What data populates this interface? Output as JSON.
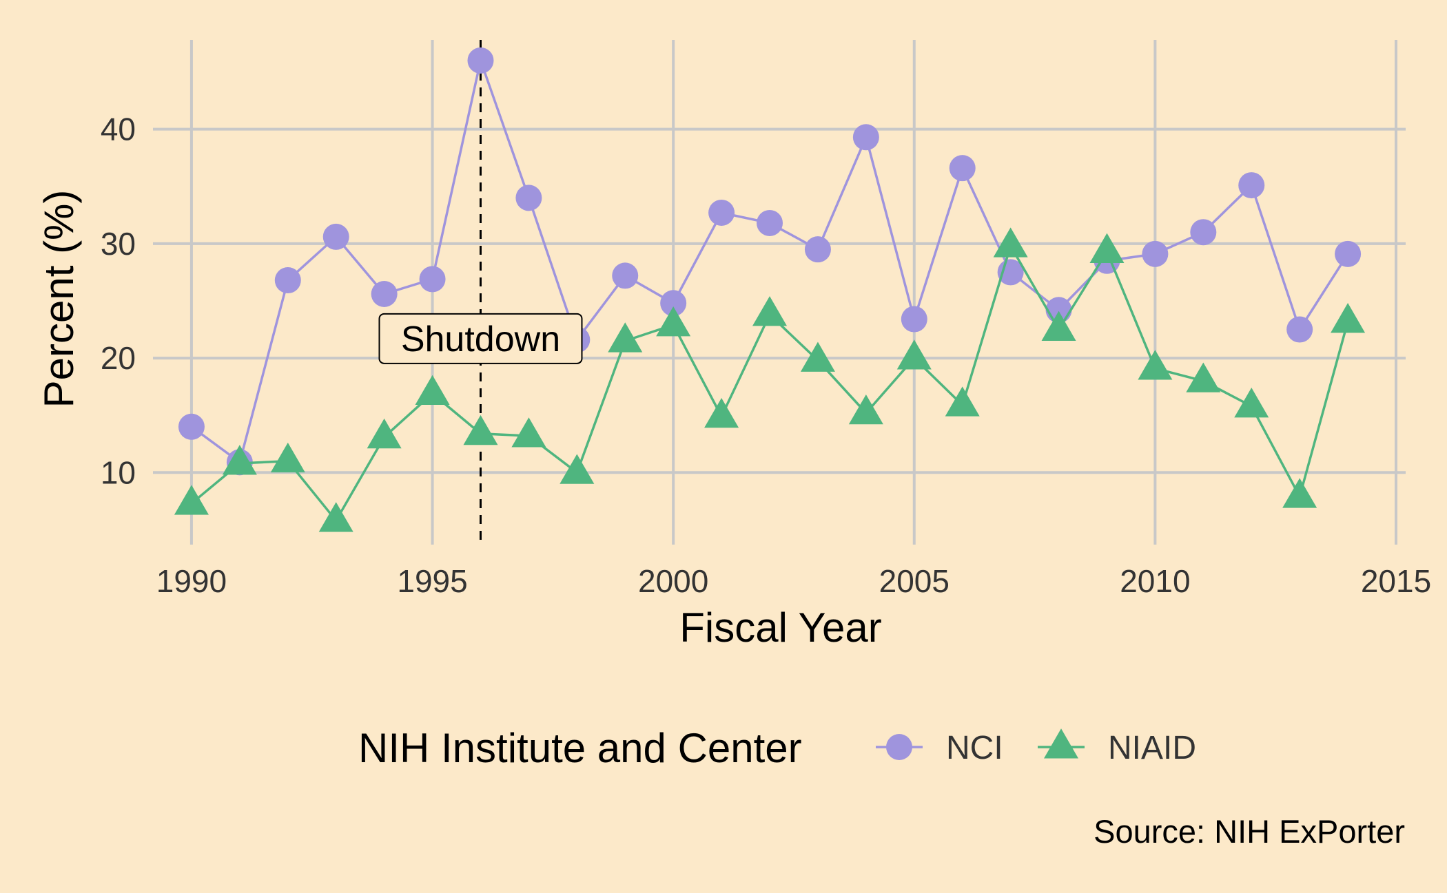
{
  "chart_data": {
    "type": "line",
    "xlabel": "Fiscal Year",
    "ylabel": "Percent (%)",
    "xlim": [
      1989.2,
      2015.2
    ],
    "ylim": [
      3.7,
      47.8
    ],
    "x_ticks": [
      1990,
      1995,
      2000,
      2005,
      2010,
      2015
    ],
    "y_ticks": [
      10,
      20,
      30,
      40
    ],
    "grid": true,
    "caption": "Source: NIH ExPorter",
    "legend": {
      "title": "NIH Institute and Center",
      "position": "bottom"
    },
    "annotation": {
      "x": 1996,
      "y": 21.7,
      "label": "Shutdown",
      "line_style": "dashed"
    },
    "x": [
      1990,
      1991,
      1992,
      1993,
      1994,
      1995,
      1996,
      1997,
      1998,
      1999,
      2000,
      2001,
      2002,
      2003,
      2004,
      2005,
      2006,
      2007,
      2008,
      2009,
      2010,
      2011,
      2012,
      2013,
      2014
    ],
    "series": [
      {
        "name": "NCI",
        "color": "#9f94dd",
        "marker": "circle",
        "values": [
          14.0,
          10.9,
          26.8,
          30.6,
          25.6,
          26.9,
          46.0,
          34.0,
          21.6,
          27.2,
          24.8,
          32.7,
          31.8,
          29.5,
          39.3,
          23.4,
          36.6,
          27.5,
          24.2,
          28.5,
          29.1,
          31.0,
          35.1,
          22.5,
          29.1
        ]
      },
      {
        "name": "NIAID",
        "color": "#4fb57f",
        "marker": "triangle",
        "values": [
          7.3,
          10.8,
          11.0,
          5.8,
          13.1,
          16.9,
          13.4,
          13.2,
          10.0,
          21.5,
          22.9,
          14.9,
          23.8,
          19.8,
          15.2,
          20.0,
          15.9,
          29.8,
          22.5,
          29.3,
          19.1,
          18.0,
          15.8,
          7.9,
          23.2
        ]
      }
    ]
  },
  "style": {
    "background": "#fce9c9",
    "grid_color": "#c8c8c8",
    "annotation_color": "#000000"
  }
}
